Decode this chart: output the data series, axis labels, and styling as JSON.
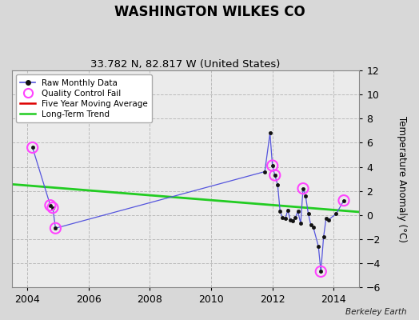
{
  "title": "WASHINGTON WILKES CO",
  "subtitle": "33.782 N, 82.817 W (United States)",
  "ylabel": "Temperature Anomaly (°C)",
  "credit": "Berkeley Earth",
  "xlim": [
    2003.5,
    2014.83
  ],
  "ylim": [
    -6,
    12
  ],
  "yticks": [
    -6,
    -4,
    -2,
    0,
    2,
    4,
    6,
    8,
    10,
    12
  ],
  "xticks": [
    2004,
    2006,
    2008,
    2010,
    2012,
    2014
  ],
  "bg_color": "#d8d8d8",
  "plot_bg_color": "#ebebeb",
  "raw_x": [
    2004.17,
    2004.75,
    2004.83,
    2004.92,
    2011.75,
    2011.92,
    2012.0,
    2012.08,
    2012.17,
    2012.25,
    2012.33,
    2012.42,
    2012.5,
    2012.58,
    2012.67,
    2012.75,
    2012.83,
    2012.92,
    2013.0,
    2013.08,
    2013.17,
    2013.25,
    2013.33,
    2013.5,
    2013.58,
    2013.67,
    2013.75,
    2013.83,
    2014.08,
    2014.33
  ],
  "raw_y": [
    5.6,
    0.8,
    0.6,
    -1.1,
    3.6,
    6.8,
    4.1,
    3.3,
    2.5,
    0.3,
    -0.25,
    -0.3,
    0.4,
    -0.4,
    -0.5,
    -0.2,
    0.3,
    -0.7,
    2.2,
    1.6,
    0.1,
    -0.8,
    -1.0,
    -2.6,
    -4.7,
    -1.8,
    -0.3,
    -0.4,
    0.1,
    1.2
  ],
  "qc_x": [
    2004.17,
    2004.75,
    2004.83,
    2004.92,
    2012.0,
    2012.08,
    2013.0,
    2013.58,
    2014.33
  ],
  "qc_y": [
    5.6,
    0.8,
    0.6,
    -1.1,
    4.1,
    3.3,
    2.2,
    -4.7,
    1.2
  ],
  "trend_x": [
    2003.5,
    2014.83
  ],
  "trend_y": [
    2.55,
    0.25
  ],
  "raw_line_color": "#5555dd",
  "raw_marker_color": "#111111",
  "qc_color": "#ff44ff",
  "trend_color": "#22cc22",
  "ma_color": "#dd0000",
  "grid_color": "#bbbbbb",
  "grid_linestyle": "--"
}
